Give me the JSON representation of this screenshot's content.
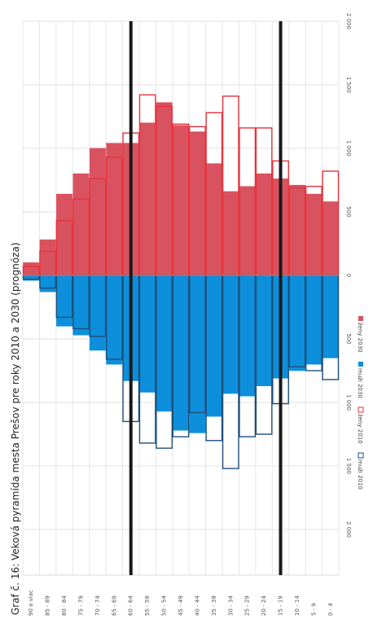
{
  "title": "Graf č. 16: Veková pyramída mesta Prešov pre roky 2010 a 2030 (prognóza)",
  "chart_data": {
    "type": "bar",
    "orientation": "horizontal population pyramid",
    "categories": [
      "90 a viac",
      "85 - 89",
      "80 - 84",
      "75 - 79",
      "70 - 74",
      "65 - 69",
      "60 - 64",
      "55 - 59",
      "50 - 54",
      "45 - 49",
      "40 - 44",
      "35 - 39",
      "30 - 34",
      "25 - 29",
      "20 - 24",
      "15 - 19",
      "10 - 14",
      "5 - 9",
      "0 - 4"
    ],
    "series": [
      {
        "name": "muži 2010",
        "side": "left",
        "style": "outline",
        "color": "#1f4e79",
        "values": [
          30,
          100,
          330,
          420,
          480,
          660,
          1150,
          1320,
          1360,
          1270,
          1080,
          1300,
          1520,
          1270,
          1250,
          1010,
          720,
          750,
          820
        ]
      },
      {
        "name": "ženy 2010",
        "side": "right",
        "style": "outline",
        "color": "#e8333c",
        "values": [
          70,
          190,
          430,
          600,
          760,
          930,
          1120,
          1420,
          1330,
          1190,
          1170,
          1280,
          1410,
          1160,
          1160,
          900,
          690,
          700,
          820
        ]
      },
      {
        "name": "muži 2030",
        "side": "left",
        "style": "filled",
        "color": "#0d8fdb",
        "values": [
          40,
          130,
          400,
          470,
          590,
          700,
          830,
          920,
          1070,
          1220,
          1240,
          1110,
          930,
          950,
          870,
          810,
          750,
          700,
          650
        ]
      },
      {
        "name": "ženy 2030",
        "side": "right",
        "style": "filled",
        "color": "#d9525f",
        "values": [
          100,
          280,
          640,
          800,
          1000,
          1040,
          1040,
          1200,
          1360,
          1180,
          1130,
          880,
          660,
          700,
          800,
          760,
          710,
          640,
          580
        ]
      }
    ],
    "axis": {
      "min": -2000,
      "max": 2000,
      "tick_labels": [
        "2 000",
        "1 500",
        "1 000",
        "500",
        "0",
        "500",
        "1 000",
        "1 500",
        "2 000"
      ]
    },
    "legend": [
      "muži 2010",
      "ženy 2010",
      "muži 2030",
      "ženy 2030"
    ],
    "legend_position": "bottom",
    "grid": true,
    "annotations": "two thick black vertical lines marking age groups 60 - 64 and 15 - 19"
  }
}
